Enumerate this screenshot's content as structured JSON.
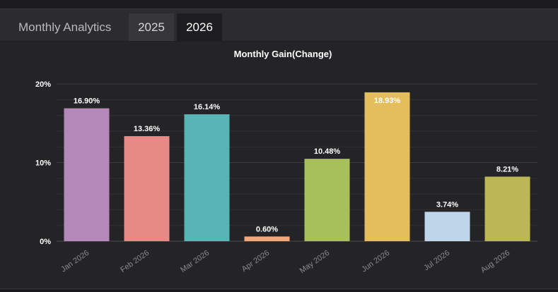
{
  "header": {
    "title": "Monthly Analytics",
    "tabs": [
      {
        "label": "2025",
        "active": false
      },
      {
        "label": "2026",
        "active": true
      }
    ]
  },
  "colors": {
    "background": "#242427",
    "grid": "#3a3a3e",
    "text": "#ffffff",
    "axis_text": "#8a8a8e"
  },
  "chart_data": {
    "type": "bar",
    "title": "Monthly Gain(Change)",
    "xlabel": "",
    "ylabel": "",
    "categories": [
      "Jan 2026",
      "Feb 2026",
      "Mar 2026",
      "Apr 2026",
      "May 2026",
      "Jun 2026",
      "Jul 2026",
      "Aug 2026"
    ],
    "values": [
      16.9,
      13.36,
      16.14,
      0.6,
      10.48,
      18.93,
      3.74,
      8.21
    ],
    "data_labels": [
      "16.90%",
      "13.36%",
      "16.14%",
      "0.60%",
      "10.48%",
      "18.93%",
      "3.74%",
      "8.21%"
    ],
    "bar_colors": [
      "#b488b9",
      "#e58a85",
      "#58b5b6",
      "#f2a77a",
      "#a8c05c",
      "#e4be5c",
      "#bfd6ea",
      "#bcb756"
    ],
    "ylim": [
      0,
      20
    ],
    "yticks": [
      0,
      10,
      20
    ],
    "ytick_labels": [
      "0%",
      "10%",
      "20%"
    ],
    "grid": true,
    "legend": "none"
  }
}
